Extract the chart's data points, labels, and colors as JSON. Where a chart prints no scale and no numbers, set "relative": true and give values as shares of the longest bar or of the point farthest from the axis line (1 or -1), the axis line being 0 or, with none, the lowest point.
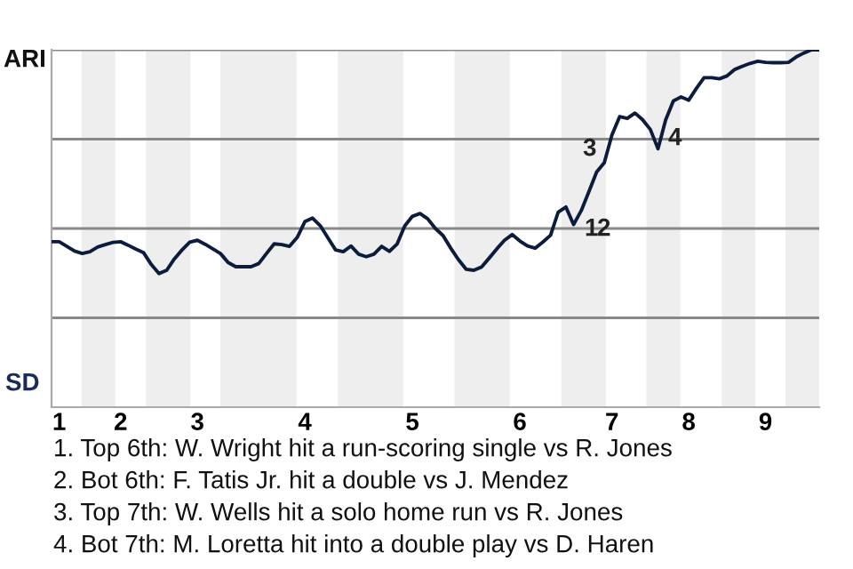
{
  "chart_data": {
    "type": "line",
    "relative": true,
    "categories": [
      null,
      "1",
      null,
      null,
      null,
      null,
      null,
      null,
      null,
      "2",
      null,
      null,
      null,
      null,
      null,
      null,
      null,
      null,
      null,
      "3",
      null,
      null,
      null,
      null,
      null,
      null,
      null,
      null,
      null,
      null,
      null,
      null,
      null,
      "4",
      null,
      null,
      null,
      null,
      null,
      null,
      null,
      null,
      null,
      null,
      null,
      null,
      null,
      "5",
      null,
      null,
      null,
      null,
      null,
      null,
      null,
      null,
      null,
      null,
      null,
      null,
      null,
      "6",
      null,
      null,
      null,
      null,
      null,
      null,
      null,
      null,
      null,
      null,
      null,
      "7",
      null,
      null,
      null,
      null,
      null,
      null,
      null,
      null,
      null,
      "8",
      null,
      null,
      null,
      null,
      null,
      null,
      null,
      null,
      null,
      "9",
      null,
      null,
      null,
      null,
      null,
      null,
      null
    ],
    "series": [
      {
        "color": "#0c1c3c",
        "values": [
          0.463,
          0.463,
          0.45,
          0.437,
          0.43,
          0.435,
          0.448,
          0.455,
          0.461,
          0.463,
          0.453,
          0.442,
          0.432,
          0.399,
          0.374,
          0.383,
          0.415,
          0.44,
          0.462,
          0.467,
          0.456,
          0.443,
          0.43,
          0.405,
          0.393,
          0.393,
          0.393,
          0.402,
          0.43,
          0.457,
          0.455,
          0.45,
          0.475,
          0.519,
          0.529,
          0.508,
          0.474,
          0.44,
          0.435,
          0.451,
          0.428,
          0.421,
          0.428,
          0.45,
          0.436,
          0.456,
          0.507,
          0.534,
          0.542,
          0.527,
          0.5,
          0.48,
          0.445,
          0.413,
          0.386,
          0.383,
          0.392,
          0.417,
          0.443,
          0.467,
          0.483,
          0.465,
          0.451,
          0.445,
          0.462,
          0.481,
          0.546,
          0.56,
          0.511,
          0.55,
          0.603,
          0.658,
          0.684,
          0.762,
          0.813,
          0.808,
          0.823,
          0.804,
          0.777,
          0.723,
          0.804,
          0.857,
          0.868,
          0.859,
          0.892,
          0.922,
          0.922,
          0.919,
          0.927,
          0.945,
          0.954,
          0.962,
          0.968,
          0.965,
          0.964,
          0.964,
          0.965,
          0.98,
          0.991,
          1.0,
          1.0
        ]
      }
    ],
    "grid": "y",
    "marker": "none",
    "line_style": "solid",
    "annotations": [
      "ARI",
      "SD",
      "1",
      "2",
      "3",
      "4",
      "1. Top 6th: W. Wright hit a run-scoring single vs R. Jones",
      "2. Bot 6th: F. Tatis Jr. hit a double vs J. Mendez",
      "3. Top 7th: W. Wells hit a solo home run vs R. Jones",
      "4. Bot 7th: M. Loretta hit into a double play vs D. Haren"
    ]
  }
}
